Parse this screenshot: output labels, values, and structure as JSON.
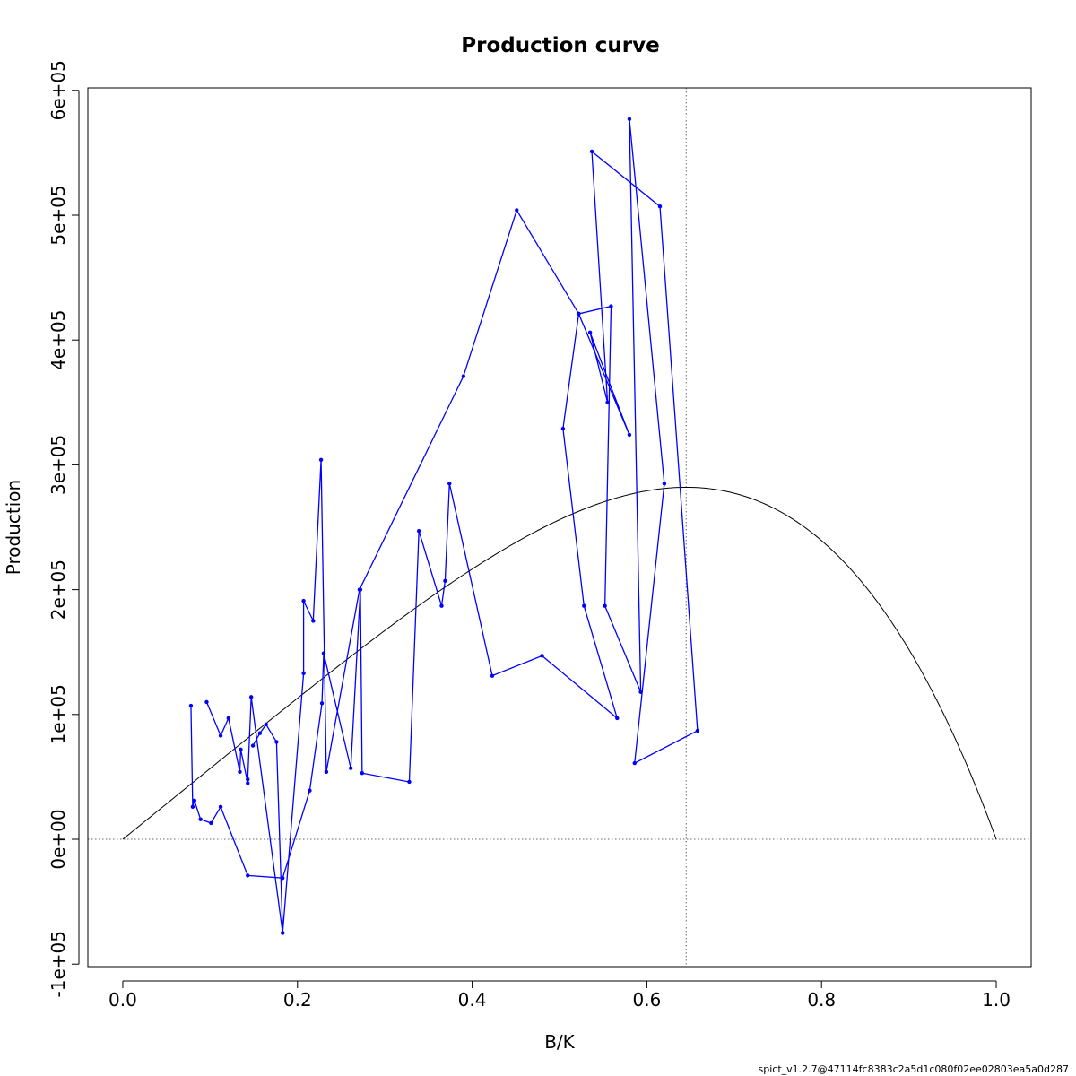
{
  "chart_data": {
    "type": "line",
    "title": "Production curve",
    "xlabel": "B/K",
    "ylabel": "Production",
    "footer": "spict_v1.2.7@47114fc8383c2a5d1c080f02ee02803ea5a0d287",
    "xlim": [
      -0.04,
      1.04
    ],
    "ylim": [
      -102000,
      602000
    ],
    "x_ticks": [
      0.0,
      0.2,
      0.4,
      0.6,
      0.8,
      1.0
    ],
    "x_tick_labels": [
      "0.0",
      "0.2",
      "0.4",
      "0.6",
      "0.8",
      "1.0"
    ],
    "y_ticks": [
      -100000,
      0,
      100000,
      200000,
      300000,
      400000,
      500000,
      600000
    ],
    "y_tick_labels": [
      "-1e+05",
      "0e+00",
      "1e+05",
      "2e+05",
      "3e+05",
      "4e+05",
      "5e+05",
      "6e+05"
    ],
    "grid": false,
    "bmsy_line_x": 0.645,
    "hline_y": 0,
    "colors": {
      "observed": "#0000ff",
      "curve": "#000000",
      "reference": "#666666"
    },
    "series": [
      {
        "style": "line",
        "color": "#000000",
        "curve": {
          "shape": "generalized-production",
          "mmax": 282000,
          "bmsy_over_k": 0.645
        }
      },
      {
        "style": "line+points",
        "color": "#0000ff",
        "points": [
          [
            0.078,
            107000
          ],
          [
            0.08,
            26000
          ],
          [
            0.082,
            31000
          ],
          [
            0.089,
            16000
          ],
          [
            0.101,
            13000
          ],
          [
            0.112,
            26000
          ],
          [
            0.143,
            -29000
          ],
          [
            0.183,
            -31000
          ],
          [
            0.214,
            39000
          ],
          [
            0.228,
            109000
          ],
          [
            0.23,
            149000
          ],
          [
            0.261,
            57000
          ],
          [
            0.272,
            200000
          ],
          [
            0.274,
            53000
          ],
          [
            0.328,
            46000
          ],
          [
            0.339,
            247000
          ],
          [
            0.365,
            187000
          ],
          [
            0.369,
            207000
          ],
          [
            0.374,
            285000
          ],
          [
            0.423,
            131000
          ],
          [
            0.48,
            147000
          ],
          [
            0.566,
            97000
          ],
          [
            0.528,
            187000
          ],
          [
            0.504,
            329000
          ],
          [
            0.522,
            421000
          ],
          [
            0.559,
            427000
          ],
          [
            0.552,
            187000
          ],
          [
            0.593,
            118000
          ],
          [
            0.58,
            577000
          ],
          [
            0.62,
            285000
          ],
          [
            0.586,
            61000
          ],
          [
            0.658,
            87000
          ],
          [
            0.615,
            507000
          ],
          [
            0.537,
            551000
          ],
          [
            0.555,
            350000
          ],
          [
            0.535,
            406000
          ],
          [
            0.58,
            324000
          ],
          [
            0.522,
            421000
          ],
          [
            0.451,
            504000
          ],
          [
            0.39,
            371000
          ],
          [
            0.271,
            200000
          ],
          [
            0.233,
            54000
          ],
          [
            0.227,
            304000
          ],
          [
            0.218,
            175000
          ],
          [
            0.207,
            191000
          ],
          [
            0.207,
            133000
          ],
          [
            0.183,
            -75000
          ],
          [
            0.147,
            114000
          ],
          [
            0.143,
            48000
          ],
          [
            0.143,
            45000
          ],
          [
            0.135,
            72000
          ],
          [
            0.134,
            54000
          ],
          [
            0.121,
            97000
          ],
          [
            0.112,
            83000
          ],
          [
            0.096,
            110000
          ]
        ]
      },
      {
        "style": "line+points",
        "color": "#0000ff",
        "points": [
          [
            0.149,
            75000
          ],
          [
            0.157,
            85000
          ],
          [
            0.164,
            92000
          ],
          [
            0.176,
            78000
          ],
          [
            0.183,
            -75000
          ]
        ]
      }
    ]
  }
}
